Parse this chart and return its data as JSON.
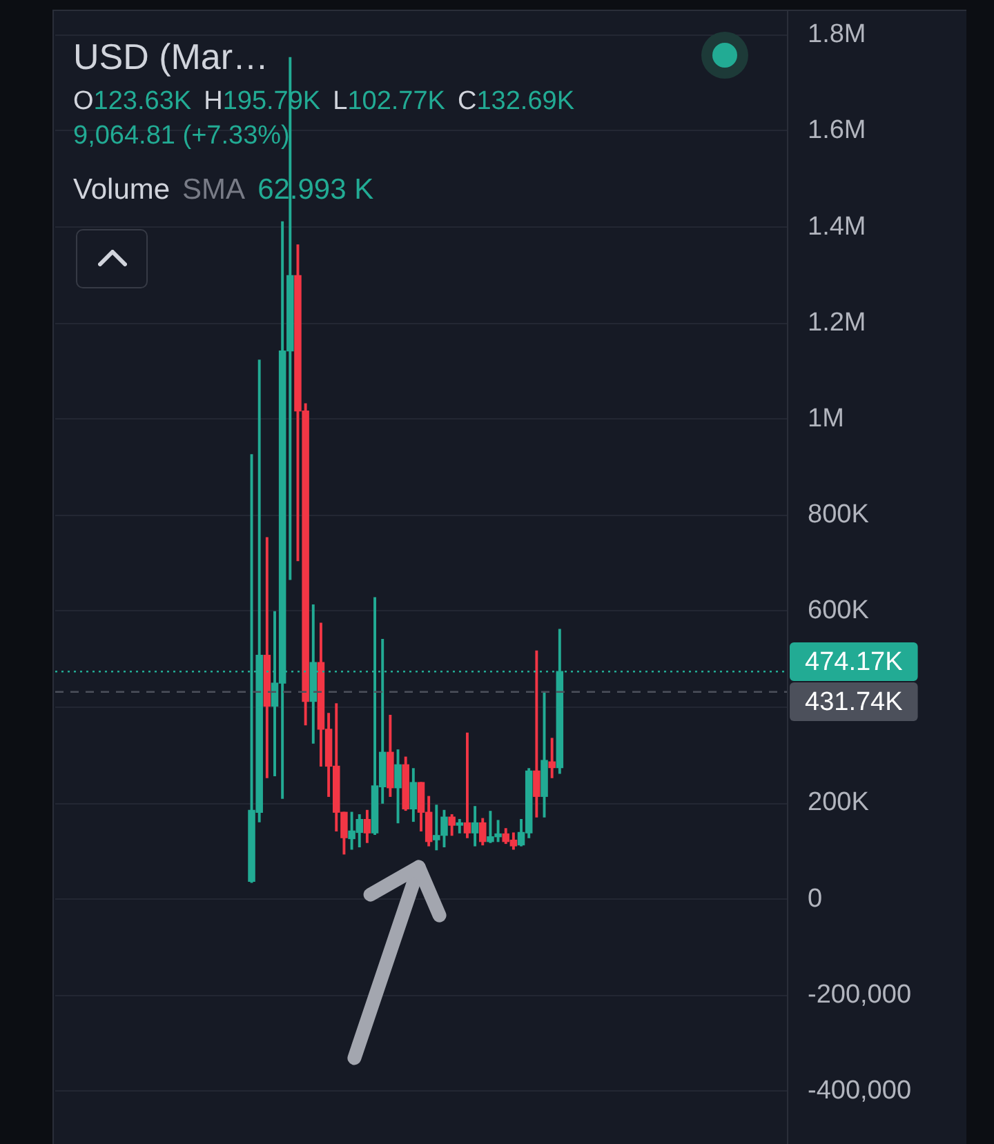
{
  "chart_data": {
    "type": "candlestick",
    "title": "USD (Mar…",
    "annotations": [
      "O",
      "123.63K",
      "H",
      "195.79K",
      "L",
      "102.77K",
      "C",
      "132.69K",
      "9,064.81 (+7.33%)",
      "Volume",
      "SMA",
      "62.993 K"
    ],
    "categories": [
      null,
      null,
      null,
      null,
      null,
      null,
      null,
      null,
      null,
      null,
      null,
      null,
      null,
      null,
      null,
      null,
      null,
      null,
      null,
      null,
      null,
      null,
      null,
      null,
      null,
      null,
      null,
      null,
      null,
      null,
      null,
      null,
      null,
      null,
      null,
      null,
      null,
      null,
      null,
      null,
      null,
      null,
      null,
      null,
      null,
      null,
      null,
      null,
      null,
      null,
      null,
      null,
      null,
      null,
      null,
      null,
      null,
      null,
      null,
      null,
      null,
      null,
      null,
      null,
      null,
      null,
      null,
      null,
      null,
      null,
      null,
      null,
      null,
      null,
      null,
      null,
      null,
      null,
      null,
      null,
      null,
      null,
      null,
      null,
      null,
      null,
      null,
      null,
      null,
      null,
      null,
      null,
      null,
      null,
      null
    ],
    "ohlc": [
      null,
      null,
      null,
      null,
      null,
      null,
      null,
      null,
      null,
      null,
      null,
      null,
      null,
      null,
      null,
      null,
      null,
      null,
      null,
      null,
      null,
      null,
      null,
      null,
      null,
      [
        37000,
        926000,
        35000,
        185000
      ],
      [
        181000,
        1123000,
        161000,
        508000
      ],
      [
        508000,
        753000,
        253000,
        402000
      ],
      [
        402000,
        599000,
        257000,
        450000
      ],
      [
        450000,
        1411000,
        210000,
        1142000
      ],
      [
        1142000,
        1753000,
        666000,
        1299000
      ],
      [
        1299000,
        1363000,
        705000,
        1017000
      ],
      [
        1017000,
        1032000,
        363000,
        412000
      ],
      [
        412000,
        613000,
        325000,
        493000
      ],
      [
        493000,
        575000,
        277000,
        354000
      ],
      [
        354000,
        387000,
        214000,
        277000
      ],
      [
        277000,
        407000,
        142000,
        181000
      ],
      [
        181000,
        181000,
        94000,
        128000
      ],
      [
        126000,
        181000,
        104000,
        142000
      ],
      [
        139000,
        176000,
        109000,
        166000
      ],
      [
        166000,
        185000,
        118000,
        138000
      ],
      [
        138000,
        628000,
        135000,
        236000
      ],
      [
        234000,
        541000,
        200000,
        306000
      ],
      [
        306000,
        383000,
        214000,
        232000
      ],
      [
        232000,
        311000,
        159000,
        280000
      ],
      [
        280000,
        296000,
        185000,
        188000
      ],
      [
        188000,
        272000,
        162000,
        243000
      ],
      [
        243000,
        243000,
        142000,
        181000
      ],
      [
        181000,
        214000,
        111000,
        120000
      ],
      [
        123630,
        195790,
        102770,
        132690
      ],
      [
        133000,
        185000,
        109000,
        171000
      ],
      [
        171000,
        176000,
        133000,
        154000
      ],
      [
        154000,
        166000,
        138000,
        159000
      ],
      [
        159000,
        346000,
        128000,
        138000
      ],
      [
        138000,
        193000,
        111000,
        159000
      ],
      [
        159000,
        168000,
        113000,
        120000
      ],
      [
        120000,
        183000,
        118000,
        130000
      ],
      [
        130000,
        164000,
        120000,
        136000
      ],
      [
        136000,
        147000,
        116000,
        120000
      ],
      [
        123000,
        138000,
        104000,
        111000
      ],
      [
        113000,
        166000,
        111000,
        139000
      ],
      [
        138000,
        272000,
        128000,
        267000
      ],
      [
        267000,
        517000,
        171000,
        214000
      ],
      [
        214000,
        431000,
        171000,
        289000
      ],
      [
        286000,
        335000,
        253000,
        274000
      ],
      [
        274000,
        562000,
        262000,
        474170
      ],
      null,
      null,
      null,
      null,
      null,
      null,
      null,
      null,
      null,
      null,
      null,
      null,
      null,
      null,
      null,
      null,
      null,
      null,
      null,
      null,
      null,
      null,
      null,
      null,
      null,
      null,
      null,
      null,
      null
    ],
    "colors": [
      null,
      null,
      null,
      null,
      null,
      null,
      null,
      null,
      null,
      null,
      null,
      null,
      null,
      null,
      null,
      null,
      null,
      null,
      null,
      null,
      null,
      null,
      null,
      null,
      null,
      "#22ab94",
      "#22ab94",
      "#f23645",
      "#22ab94",
      "#22ab94",
      "#22ab94",
      "#f23645",
      "#f23645",
      "#22ab94",
      "#f23645",
      "#f23645",
      "#f23645",
      "#f23645",
      "#22ab94",
      "#22ab94",
      "#f23645",
      "#22ab94",
      "#22ab94",
      "#f23645",
      "#22ab94",
      "#f23645",
      "#22ab94",
      "#f23645",
      "#f23645",
      "#22ab94",
      "#22ab94",
      "#f23645",
      "#22ab94",
      "#f23645",
      "#22ab94",
      "#f23645",
      "#22ab94",
      "#22ab94",
      "#f23645",
      "#f23645",
      "#22ab94",
      "#22ab94",
      "#f23645",
      "#22ab94",
      "#f23645",
      "#22ab94",
      null,
      null,
      null,
      null,
      null,
      null,
      null,
      null,
      null,
      null,
      null,
      null,
      null,
      null,
      null,
      null,
      null,
      null,
      null,
      null,
      null,
      null,
      null,
      null,
      null,
      null,
      null,
      null,
      null
    ],
    "ylim": [
      -510000,
      1850000
    ],
    "yticks": [
      {
        "value": -400000,
        "label": "-400,000"
      },
      {
        "value": -200000,
        "label": "-200,000"
      },
      0,
      {
        "value": 200000,
        "label": "200K"
      },
      {
        "value": 400000,
        "label": null
      },
      {
        "value": 600000,
        "label": "600K"
      },
      {
        "value": 800000,
        "label": "800K"
      },
      {
        "value": 1000000,
        "label": "1M"
      },
      {
        "value": 1200000,
        "label": "1.2M"
      },
      {
        "value": 1400000,
        "label": "1.4M"
      },
      {
        "value": 1600000,
        "label": "1.6M"
      },
      {
        "value": 1800000,
        "label": "1.8M"
      }
    ],
    "grid": "y",
    "tick_labels": "y",
    "ref_lines": [
      {
        "axis": "y",
        "value": 474170,
        "label": "474.17K",
        "color": "#22ab94",
        "line_style": "dotted"
      },
      {
        "axis": "y",
        "value": 431740,
        "label": "431.74K",
        "color": "#4c505b",
        "line_style": "dashed"
      }
    ]
  }
}
